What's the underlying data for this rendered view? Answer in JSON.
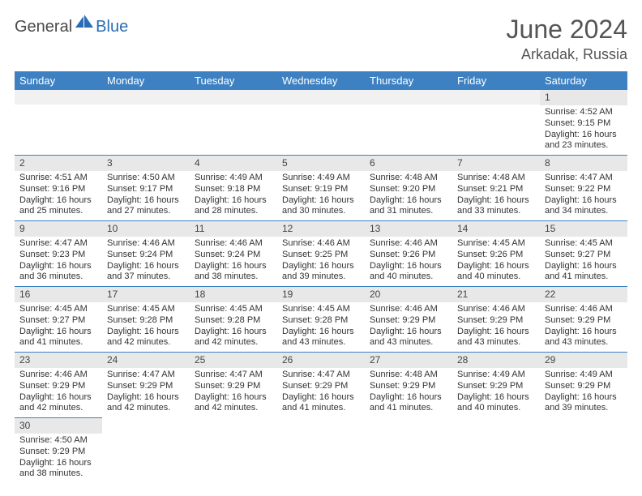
{
  "brand": {
    "general": "General",
    "blue": "Blue"
  },
  "title": "June 2024",
  "location": "Arkadak, Russia",
  "colors": {
    "header_bg": "#3d81c2",
    "header_text": "#ffffff",
    "daynum_bg": "#e8e8e8",
    "separator": "#3d81c2",
    "title_color": "#555555",
    "body_text": "#333333"
  },
  "weekdays": [
    "Sunday",
    "Monday",
    "Tuesday",
    "Wednesday",
    "Thursday",
    "Friday",
    "Saturday"
  ],
  "weeks": [
    [
      null,
      null,
      null,
      null,
      null,
      null,
      {
        "d": "1",
        "sr": "4:52 AM",
        "ss": "9:15 PM",
        "dl": "16 hours and 23 minutes."
      }
    ],
    [
      {
        "d": "2",
        "sr": "4:51 AM",
        "ss": "9:16 PM",
        "dl": "16 hours and 25 minutes."
      },
      {
        "d": "3",
        "sr": "4:50 AM",
        "ss": "9:17 PM",
        "dl": "16 hours and 27 minutes."
      },
      {
        "d": "4",
        "sr": "4:49 AM",
        "ss": "9:18 PM",
        "dl": "16 hours and 28 minutes."
      },
      {
        "d": "5",
        "sr": "4:49 AM",
        "ss": "9:19 PM",
        "dl": "16 hours and 30 minutes."
      },
      {
        "d": "6",
        "sr": "4:48 AM",
        "ss": "9:20 PM",
        "dl": "16 hours and 31 minutes."
      },
      {
        "d": "7",
        "sr": "4:48 AM",
        "ss": "9:21 PM",
        "dl": "16 hours and 33 minutes."
      },
      {
        "d": "8",
        "sr": "4:47 AM",
        "ss": "9:22 PM",
        "dl": "16 hours and 34 minutes."
      }
    ],
    [
      {
        "d": "9",
        "sr": "4:47 AM",
        "ss": "9:23 PM",
        "dl": "16 hours and 36 minutes."
      },
      {
        "d": "10",
        "sr": "4:46 AM",
        "ss": "9:24 PM",
        "dl": "16 hours and 37 minutes."
      },
      {
        "d": "11",
        "sr": "4:46 AM",
        "ss": "9:24 PM",
        "dl": "16 hours and 38 minutes."
      },
      {
        "d": "12",
        "sr": "4:46 AM",
        "ss": "9:25 PM",
        "dl": "16 hours and 39 minutes."
      },
      {
        "d": "13",
        "sr": "4:46 AM",
        "ss": "9:26 PM",
        "dl": "16 hours and 40 minutes."
      },
      {
        "d": "14",
        "sr": "4:45 AM",
        "ss": "9:26 PM",
        "dl": "16 hours and 40 minutes."
      },
      {
        "d": "15",
        "sr": "4:45 AM",
        "ss": "9:27 PM",
        "dl": "16 hours and 41 minutes."
      }
    ],
    [
      {
        "d": "16",
        "sr": "4:45 AM",
        "ss": "9:27 PM",
        "dl": "16 hours and 41 minutes."
      },
      {
        "d": "17",
        "sr": "4:45 AM",
        "ss": "9:28 PM",
        "dl": "16 hours and 42 minutes."
      },
      {
        "d": "18",
        "sr": "4:45 AM",
        "ss": "9:28 PM",
        "dl": "16 hours and 42 minutes."
      },
      {
        "d": "19",
        "sr": "4:45 AM",
        "ss": "9:28 PM",
        "dl": "16 hours and 43 minutes."
      },
      {
        "d": "20",
        "sr": "4:46 AM",
        "ss": "9:29 PM",
        "dl": "16 hours and 43 minutes."
      },
      {
        "d": "21",
        "sr": "4:46 AM",
        "ss": "9:29 PM",
        "dl": "16 hours and 43 minutes."
      },
      {
        "d": "22",
        "sr": "4:46 AM",
        "ss": "9:29 PM",
        "dl": "16 hours and 43 minutes."
      }
    ],
    [
      {
        "d": "23",
        "sr": "4:46 AM",
        "ss": "9:29 PM",
        "dl": "16 hours and 42 minutes."
      },
      {
        "d": "24",
        "sr": "4:47 AM",
        "ss": "9:29 PM",
        "dl": "16 hours and 42 minutes."
      },
      {
        "d": "25",
        "sr": "4:47 AM",
        "ss": "9:29 PM",
        "dl": "16 hours and 42 minutes."
      },
      {
        "d": "26",
        "sr": "4:47 AM",
        "ss": "9:29 PM",
        "dl": "16 hours and 41 minutes."
      },
      {
        "d": "27",
        "sr": "4:48 AM",
        "ss": "9:29 PM",
        "dl": "16 hours and 41 minutes."
      },
      {
        "d": "28",
        "sr": "4:49 AM",
        "ss": "9:29 PM",
        "dl": "16 hours and 40 minutes."
      },
      {
        "d": "29",
        "sr": "4:49 AM",
        "ss": "9:29 PM",
        "dl": "16 hours and 39 minutes."
      }
    ],
    [
      {
        "d": "30",
        "sr": "4:50 AM",
        "ss": "9:29 PM",
        "dl": "16 hours and 38 minutes."
      },
      null,
      null,
      null,
      null,
      null,
      null
    ]
  ],
  "labels": {
    "sunrise": "Sunrise:",
    "sunset": "Sunset:",
    "daylight": "Daylight:"
  }
}
